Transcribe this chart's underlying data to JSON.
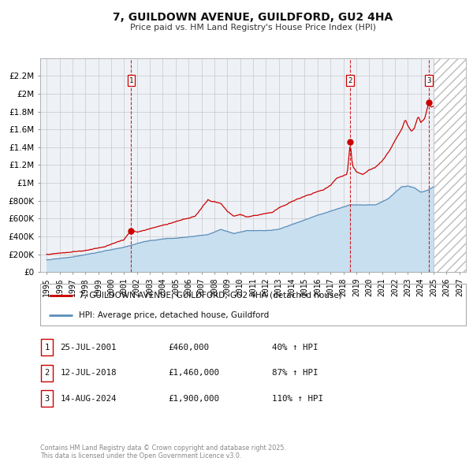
{
  "title": "7, GUILDOWN AVENUE, GUILDFORD, GU2 4HA",
  "subtitle": "Price paid vs. HM Land Registry's House Price Index (HPI)",
  "legend_line1": "7, GUILDOWN AVENUE, GUILDFORD, GU2 4HA (detached house)",
  "legend_line2": "HPI: Average price, detached house, Guildford",
  "red_color": "#cc0000",
  "blue_color": "#5b8db8",
  "blue_fill": "#c8dff0",
  "background_color": "#eef2f7",
  "grid_color": "#c8c8c8",
  "transaction_dates_decimal": [
    2001.555,
    2018.535,
    2024.62
  ],
  "transaction_prices": [
    460000,
    1460000,
    1900000
  ],
  "ylim": [
    0,
    2400000
  ],
  "yticks": [
    0,
    200000,
    400000,
    600000,
    800000,
    1000000,
    1200000,
    1400000,
    1600000,
    1800000,
    2000000,
    2200000
  ],
  "ytick_labels": [
    "£0",
    "£200K",
    "£400K",
    "£600K",
    "£800K",
    "£1M",
    "£1.2M",
    "£1.4M",
    "£1.6M",
    "£1.8M",
    "£2M",
    "£2.2M"
  ],
  "xlim_start": 1994.5,
  "xlim_end": 2027.5,
  "xtick_years": [
    1995,
    1996,
    1997,
    1998,
    1999,
    2000,
    2001,
    2002,
    2003,
    2004,
    2005,
    2006,
    2007,
    2008,
    2009,
    2010,
    2011,
    2012,
    2013,
    2014,
    2015,
    2016,
    2017,
    2018,
    2019,
    2020,
    2021,
    2022,
    2023,
    2024,
    2025,
    2026,
    2027
  ],
  "hatch_start": 2025.0,
  "transaction_labels": [
    {
      "num": 1,
      "date": "25-JUL-2001",
      "price": "£460,000",
      "pct": "40% ↑ HPI"
    },
    {
      "num": 2,
      "date": "12-JUL-2018",
      "price": "£1,460,000",
      "pct": "87% ↑ HPI"
    },
    {
      "num": 3,
      "date": "14-AUG-2024",
      "price": "£1,900,000",
      "pct": "110% ↑ HPI"
    }
  ],
  "footnote": "Contains HM Land Registry data © Crown copyright and database right 2025.\nThis data is licensed under the Open Government Licence v3.0."
}
